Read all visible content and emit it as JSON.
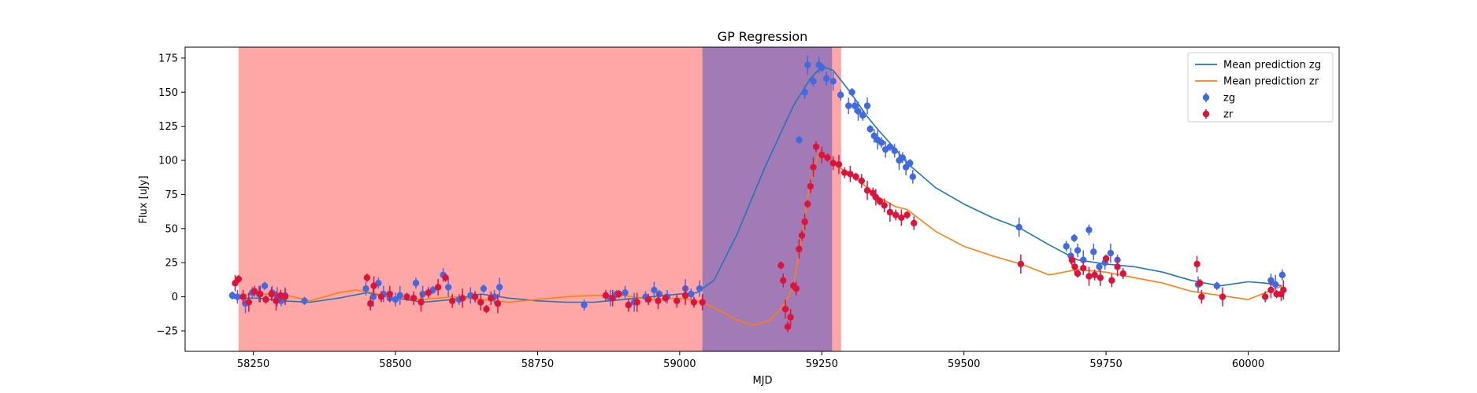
{
  "chart_data": {
    "type": "scatter",
    "title": "GP Regression",
    "xlabel": "MJD",
    "ylabel": "Flux [uJy]",
    "xlim": [
      58130,
      60160
    ],
    "ylim": [
      -40,
      183
    ],
    "xticks": [
      58250,
      58500,
      58750,
      59000,
      59250,
      59500,
      59750,
      60000
    ],
    "yticks": [
      -25,
      0,
      25,
      50,
      75,
      100,
      125,
      150,
      175
    ],
    "grid": false,
    "legend_position": "top-right",
    "shaded_regions": [
      {
        "x_start": 58224,
        "x_end": 59284,
        "color": "#ff0000",
        "opacity": 0.35
      },
      {
        "x_start": 59040,
        "x_end": 59268,
        "color": "#1f3fcc",
        "opacity": 0.42
      }
    ],
    "series": [
      {
        "name": "Mean prediction zg",
        "kind": "line",
        "color": "#1f77b4",
        "x": [
          58210,
          58260,
          58300,
          58350,
          58400,
          58450,
          58500,
          58550,
          58600,
          58650,
          58700,
          58750,
          58800,
          58850,
          58900,
          58950,
          59000,
          59030,
          59060,
          59100,
          59150,
          59200,
          59230,
          59250,
          59270,
          59300,
          59330,
          59350,
          59380,
          59400,
          59450,
          59500,
          59550,
          59600,
          59650,
          59700,
          59750,
          59800,
          59850,
          59900,
          59950,
          60000,
          60030,
          60060
        ],
        "y": [
          -1,
          -1,
          -3,
          -4,
          -1,
          3,
          -1,
          -4,
          -2,
          2,
          -1,
          -3,
          -4,
          -4,
          -2,
          0,
          2,
          3,
          12,
          45,
          95,
          140,
          160,
          169,
          166,
          150,
          132,
          122,
          108,
          98,
          80,
          68,
          58,
          50,
          38,
          27,
          24,
          22,
          18,
          12,
          8,
          11,
          10,
          8
        ]
      },
      {
        "name": "Mean prediction zr",
        "kind": "line",
        "color": "#ff7f0e",
        "x": [
          58210,
          58250,
          58300,
          58350,
          58400,
          58430,
          58460,
          58500,
          58550,
          58600,
          58650,
          58700,
          58750,
          58800,
          58850,
          58900,
          58950,
          59000,
          59040,
          59070,
          59100,
          59130,
          59160,
          59185,
          59200,
          59215,
          59230,
          59245,
          59260,
          59280,
          59300,
          59330,
          59350,
          59380,
          59400,
          59450,
          59500,
          59550,
          59600,
          59650,
          59700,
          59750,
          59800,
          59850,
          59900,
          59950,
          60000,
          60030,
          60060
        ],
        "y": [
          -1,
          2,
          2,
          -3,
          3,
          5,
          3,
          -1,
          -2,
          0,
          -2,
          -4,
          -2,
          0,
          1,
          1,
          -2,
          -1,
          -4,
          -10,
          -17,
          -21,
          -17,
          -5,
          8,
          45,
          85,
          106,
          102,
          95,
          90,
          80,
          73,
          66,
          64,
          48,
          37,
          30,
          24,
          16,
          20,
          18,
          14,
          10,
          4,
          1,
          -2,
          3,
          8
        ]
      },
      {
        "name": "zg",
        "kind": "scatter",
        "color": "#4169e1",
        "x": [
          58213,
          58222,
          58236,
          58248,
          58260,
          58270,
          58283,
          58292,
          58299,
          58306,
          58340,
          58448,
          58461,
          58470,
          58479,
          58490,
          58500,
          58508,
          58536,
          58548,
          58566,
          58584,
          58593,
          58612,
          58632,
          58655,
          58674,
          58683,
          58832,
          58878,
          58889,
          58904,
          58920,
          58940,
          58955,
          58964,
          58978,
          59010,
          59020,
          59035,
          59210,
          59220,
          59225,
          59235,
          59245,
          59250,
          59258,
          59270,
          59283,
          59297,
          59303,
          59308,
          59314,
          59322,
          59330,
          59335,
          59342,
          59348,
          59355,
          59362,
          59370,
          59378,
          59386,
          59392,
          59398,
          59405,
          59410,
          59597,
          59680,
          59688,
          59694,
          59700,
          59710,
          59720,
          59728,
          59738,
          59748,
          59758,
          59770,
          59912,
          59945,
          60040,
          60048,
          60060
        ],
        "y": [
          1,
          0,
          -5,
          3,
          2,
          8,
          3,
          0,
          -3,
          1,
          -3,
          6,
          0,
          10,
          2,
          -1,
          -2,
          1,
          10,
          2,
          5,
          16,
          7,
          -2,
          1,
          6,
          0,
          7,
          -6,
          -1,
          2,
          3,
          -4,
          0,
          5,
          2,
          0,
          6,
          2,
          6,
          115,
          150,
          170,
          158,
          170,
          168,
          160,
          158,
          148,
          140,
          150,
          140,
          136,
          133,
          140,
          123,
          118,
          115,
          113,
          108,
          110,
          107,
          100,
          102,
          95,
          98,
          88,
          51,
          37,
          30,
          43,
          34,
          27,
          49,
          33,
          22,
          25,
          32,
          27,
          9,
          8,
          12,
          9,
          16
        ]
      },
      {
        "name": "zr",
        "kind": "scatter",
        "color": "#dc143c",
        "x": [
          58218,
          58224,
          58232,
          58242,
          58252,
          58262,
          58272,
          58282,
          58290,
          58298,
          58306,
          58450,
          58456,
          58462,
          58475,
          58490,
          58520,
          58532,
          58545,
          58558,
          58575,
          58588,
          58600,
          58618,
          58640,
          58650,
          58660,
          58668,
          58680,
          58870,
          58882,
          58893,
          58910,
          58925,
          58945,
          58962,
          58975,
          58995,
          59010,
          59025,
          59040,
          59178,
          59182,
          59186,
          59190,
          59195,
          59200,
          59205,
          59210,
          59215,
          59220,
          59225,
          59230,
          59235,
          59240,
          59250,
          59260,
          59270,
          59280,
          59290,
          59300,
          59310,
          59320,
          59330,
          59340,
          59345,
          59352,
          59360,
          59370,
          59380,
          59390,
          59400,
          59412,
          59600,
          59690,
          59695,
          59700,
          59710,
          59720,
          59730,
          59740,
          59750,
          59760,
          59770,
          59780,
          59910,
          59915,
          59918,
          59955,
          60030,
          60040,
          60050,
          60058,
          60062
        ],
        "y": [
          10,
          13,
          0,
          -4,
          4,
          2,
          -2,
          2,
          -3,
          1,
          0,
          14,
          -5,
          8,
          0,
          2,
          0,
          -1,
          -4,
          3,
          7,
          14,
          -3,
          -1,
          0,
          -4,
          -9,
          -1,
          -5,
          1,
          -1,
          2,
          -6,
          -4,
          -2,
          -3,
          -1,
          -3,
          1,
          -4,
          -4,
          23,
          12,
          -9,
          -22,
          -15,
          8,
          6,
          35,
          45,
          55,
          68,
          81,
          95,
          110,
          104,
          102,
          98,
          97,
          91,
          90,
          88,
          85,
          78,
          76,
          73,
          70,
          67,
          62,
          60,
          58,
          60,
          54,
          24,
          27,
          22,
          17,
          21,
          15,
          16,
          14,
          28,
          12,
          22,
          17,
          24,
          10,
          0,
          0,
          0,
          5,
          2,
          2,
          5
        ]
      }
    ]
  }
}
